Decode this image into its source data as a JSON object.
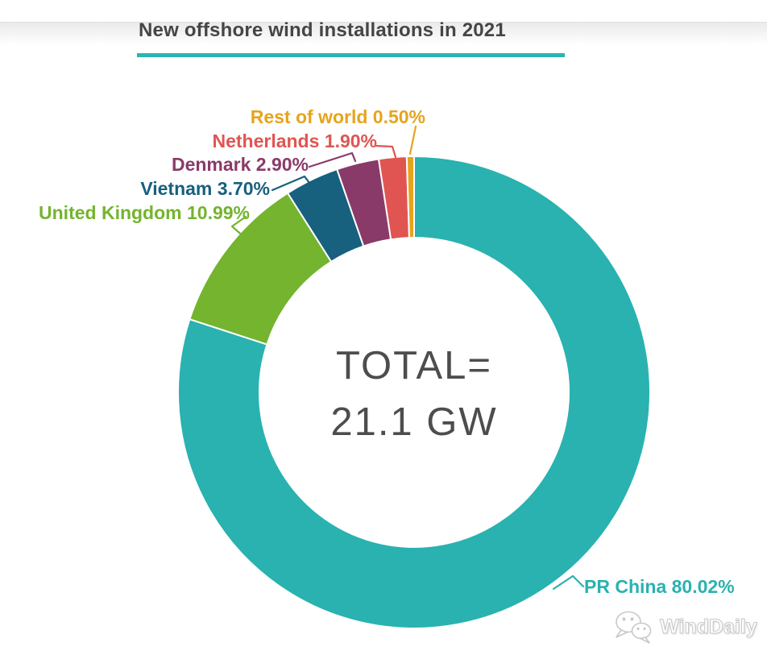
{
  "header": {
    "title": "New offshore wind installations in 2021",
    "title_color": "#454545",
    "underline_color": "#2ab5b5"
  },
  "chart_data": {
    "type": "pie",
    "variant": "donut",
    "title": "New offshore wind installations in 2021",
    "unit": "%",
    "total_label": "TOTAL=",
    "total_value": "21.1 GW",
    "start_angle": "top",
    "direction": "clockwise",
    "inner_radius_ratio": 0.655,
    "slices": [
      {
        "label": "PR China",
        "value": 80.02,
        "text": "PR China 80.02%",
        "color": "#29b2b0"
      },
      {
        "label": "United Kingdom",
        "value": 10.99,
        "text": "United Kingdom 10.99%",
        "color": "#74b42e"
      },
      {
        "label": "Vietnam",
        "value": 3.7,
        "text": "Vietnam 3.70%",
        "color": "#17607e"
      },
      {
        "label": "Denmark",
        "value": 2.9,
        "text": "Denmark 2.90%",
        "color": "#8a3a69"
      },
      {
        "label": "Netherlands",
        "value": 1.9,
        "text": "Netherlands 1.90%",
        "color": "#e05551"
      },
      {
        "label": "Rest of world",
        "value": 0.5,
        "text": "Rest of world 0.50%",
        "color": "#e6a41d"
      }
    ]
  },
  "watermark": {
    "text": "WindDaily",
    "icon": "wechat-icon"
  }
}
